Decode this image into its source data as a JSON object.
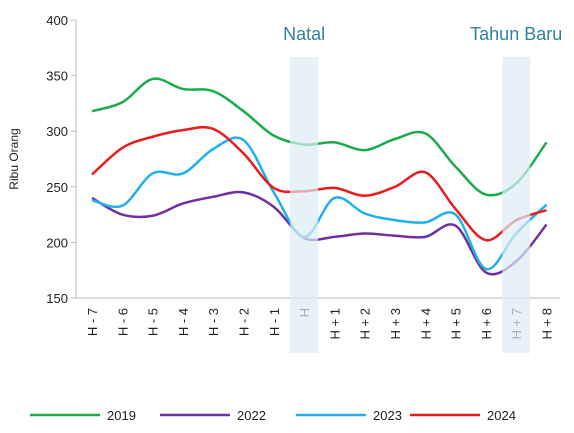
{
  "chart_data": {
    "type": "line",
    "y_label": "Ribu Orang",
    "categories": [
      "H - 7",
      "H - 6",
      "H - 5",
      "H - 4",
      "H - 3",
      "H - 2",
      "H - 1",
      "H",
      "H + 1",
      "H + 2",
      "H + 3",
      "H + 4",
      "H + 5",
      "H + 6",
      "H + 7",
      "H + 8"
    ],
    "series": [
      {
        "name": "2019",
        "color": "#1aab4a",
        "values": [
          318,
          326,
          347,
          338,
          336,
          318,
          296,
          288,
          290,
          283,
          293,
          298,
          268,
          243,
          253,
          290
        ]
      },
      {
        "name": "2022",
        "color": "#7030a0",
        "values": [
          240,
          225,
          224,
          235,
          241,
          245,
          232,
          204,
          205,
          208,
          206,
          205,
          215,
          173,
          183,
          216
        ]
      },
      {
        "name": "2023",
        "color": "#1fb1ec",
        "values": [
          238,
          233,
          262,
          262,
          284,
          292,
          245,
          205,
          240,
          226,
          220,
          218,
          225,
          176,
          208,
          234
        ]
      },
      {
        "name": "2024",
        "color": "#e81c1c",
        "values": [
          261,
          285,
          295,
          301,
          302,
          280,
          249,
          246,
          249,
          242,
          250,
          263,
          230,
          202,
          220,
          229
        ]
      }
    ],
    "annotations": [
      {
        "label": "Natal",
        "at": "H"
      },
      {
        "label": "Tahun Baru",
        "at": "H + 7"
      }
    ],
    "ylim": [
      150,
      400
    ],
    "yticks": [
      150,
      200,
      250,
      300,
      350,
      400
    ],
    "legend": "bottom"
  }
}
